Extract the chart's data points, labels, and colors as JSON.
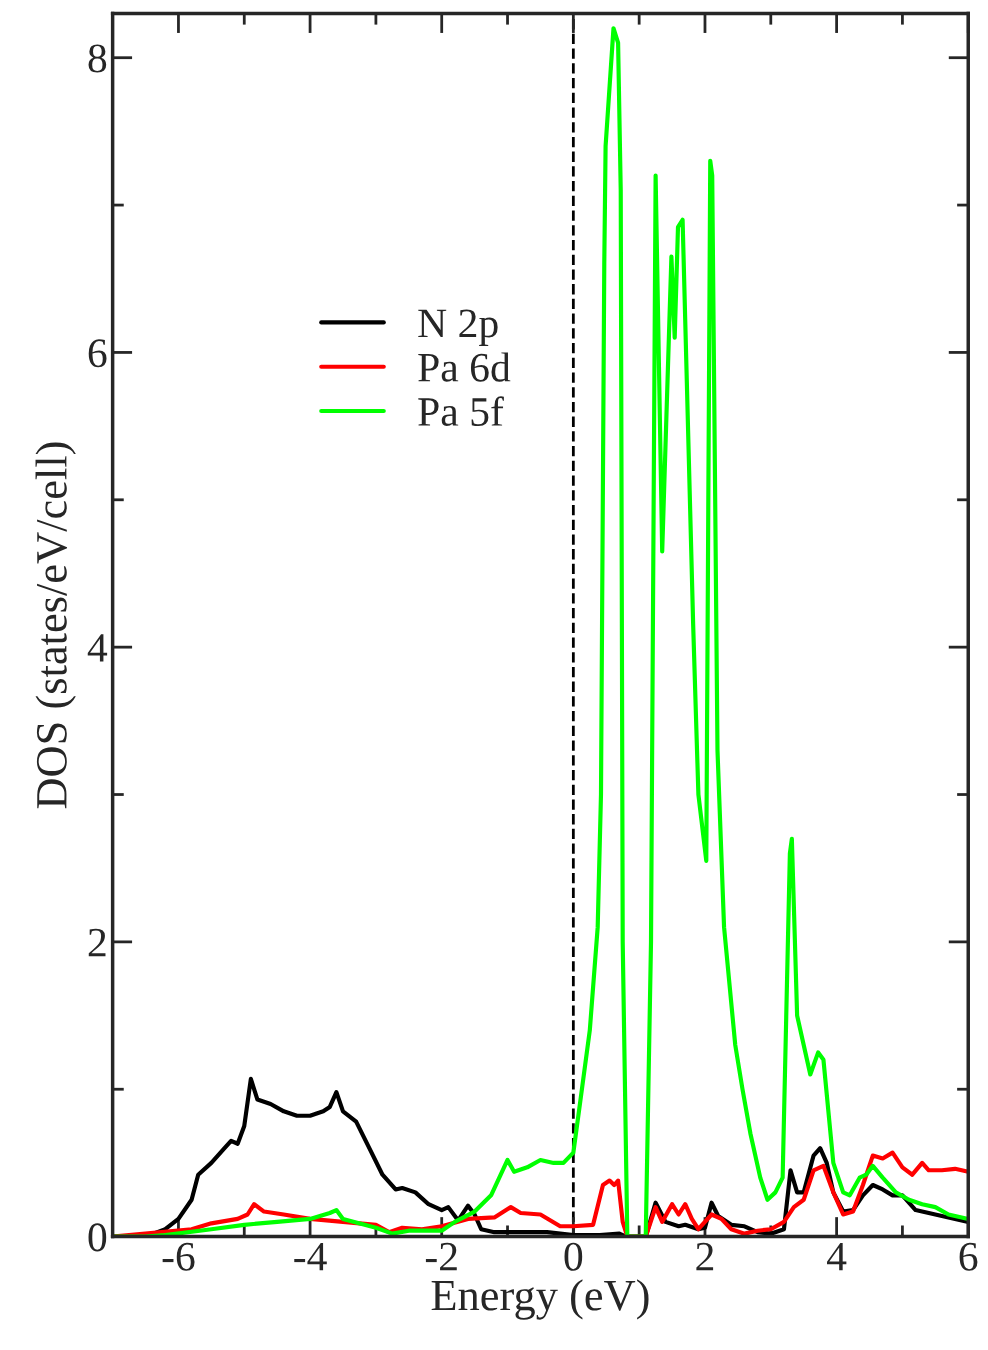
{
  "chart_data": {
    "type": "line",
    "xlabel": "Energy (eV)",
    "ylabel": "DOS (states/eV/cell)",
    "xlim": [
      -7,
      6
    ],
    "ylim": [
      0,
      8.3
    ],
    "xticks": [
      {
        "value": -7,
        "label": null
      },
      -6,
      {
        "value": -5,
        "label": null
      },
      -4,
      {
        "value": -3,
        "label": null
      },
      -2,
      {
        "value": -1,
        "label": null
      },
      0,
      {
        "value": 1,
        "label": null
      },
      2,
      {
        "value": 3,
        "label": null
      },
      4,
      {
        "value": 5,
        "label": null
      },
      6
    ],
    "yticks": [
      0,
      {
        "value": 1,
        "label": null
      },
      2,
      {
        "value": 3,
        "label": null
      },
      4,
      {
        "value": 5,
        "label": null
      },
      6,
      {
        "value": 7,
        "label": null
      },
      8
    ],
    "grid": false,
    "legend": "top left",
    "marker": "none",
    "line_style": "solid",
    "ref_lines": [
      {
        "axis": "x",
        "value": 0,
        "color": "#000000",
        "line_style": "dashed"
      }
    ],
    "series": [
      {
        "name": "N 2p",
        "color": "#000000",
        "x": [
          -7,
          -6.5,
          -6.2,
          -6,
          -5.8,
          -5.7,
          -5.5,
          -5.3,
          -5.2,
          -5.1,
          -5.0,
          -4.9,
          -4.8,
          -4.6,
          -4.4,
          -4.2,
          -4.0,
          -3.8,
          -3.7,
          -3.6,
          -3.5,
          -3.3,
          -3.1,
          -2.9,
          -2.7,
          -2.6,
          -2.4,
          -2.2,
          -2.0,
          -1.9,
          -1.75,
          -1.6,
          -1.5,
          -1.4,
          -1.2,
          -0.8,
          -0.4,
          0,
          0.4,
          0.7,
          0.8,
          1.1,
          1.25,
          1.4,
          1.6,
          1.7,
          1.9,
          2.0,
          2.1,
          2.2,
          2.4,
          2.6,
          2.8,
          3.0,
          3.2,
          3.3,
          3.4,
          3.5,
          3.65,
          3.75,
          3.85,
          3.95,
          4.1,
          4.25,
          4.4,
          4.55,
          4.7,
          4.85,
          5.0,
          5.2,
          5.4,
          5.6,
          5.8,
          6.0
        ],
        "values": [
          0,
          0,
          0.05,
          0.12,
          0.25,
          0.42,
          0.5,
          0.6,
          0.65,
          0.63,
          0.75,
          1.07,
          0.93,
          0.9,
          0.85,
          0.82,
          0.82,
          0.85,
          0.88,
          0.98,
          0.85,
          0.78,
          0.6,
          0.42,
          0.32,
          0.33,
          0.3,
          0.22,
          0.18,
          0.2,
          0.11,
          0.21,
          0.15,
          0.05,
          0.03,
          0.03,
          0.03,
          0.01,
          0.01,
          0.02,
          0,
          0,
          0.23,
          0.1,
          0.07,
          0.08,
          0.05,
          0.06,
          0.23,
          0.14,
          0.08,
          0.07,
          0.03,
          0.02,
          0.05,
          0.45,
          0.3,
          0.3,
          0.55,
          0.6,
          0.5,
          0.3,
          0.17,
          0.18,
          0.28,
          0.35,
          0.32,
          0.28,
          0.28,
          0.18,
          0.16,
          0.14,
          0.12,
          0.1
        ]
      },
      {
        "name": "Pa 6d",
        "color": "#ff0000",
        "x": [
          -7,
          -6.2,
          -5.8,
          -5.5,
          -5.1,
          -4.95,
          -4.85,
          -4.7,
          -4.4,
          -4.0,
          -3.5,
          -3.0,
          -2.8,
          -2.6,
          -2.3,
          -2.0,
          -1.6,
          -1.2,
          -0.95,
          -0.8,
          -0.5,
          -0.2,
          0,
          0.3,
          0.45,
          0.55,
          0.62,
          0.68,
          0.75,
          0.82,
          1.1,
          1.25,
          1.35,
          1.5,
          1.6,
          1.7,
          1.8,
          1.9,
          2.1,
          2.25,
          2.4,
          2.6,
          2.8,
          3.0,
          3.2,
          3.35,
          3.5,
          3.65,
          3.8,
          3.95,
          4.1,
          4.25,
          4.4,
          4.55,
          4.7,
          4.85,
          5.0,
          5.15,
          5.3,
          5.4,
          5.6,
          5.8,
          6.0
        ],
        "values": [
          0,
          null,
          0.05,
          0.09,
          0.12,
          0.15,
          0.22,
          0.17,
          0.15,
          0.12,
          0.1,
          0.08,
          0.03,
          0.06,
          0.05,
          0.07,
          0.12,
          0.13,
          0.2,
          0.16,
          0.15,
          0.07,
          0.07,
          0.08,
          0.35,
          0.38,
          0.35,
          0.38,
          0.1,
          0,
          0,
          0.2,
          0.1,
          0.22,
          0.15,
          0.22,
          0.12,
          0.05,
          0.15,
          0.12,
          0.05,
          0.02,
          0.04,
          0.05,
          0.1,
          0.2,
          0.25,
          0.45,
          0.48,
          0.3,
          0.15,
          0.17,
          0.35,
          0.55,
          0.53,
          0.57,
          0.47,
          0.42,
          0.5,
          0.45,
          0.45,
          0.46,
          0.44
        ]
      },
      {
        "name": "Pa 5f",
        "color": "#00ff00",
        "x": [
          -7,
          -6.5,
          -6.2,
          -5.5,
          -5.0,
          -4.5,
          -4.0,
          -3.7,
          -3.6,
          -3.5,
          -3.0,
          -2.75,
          -2.5,
          -2.0,
          -1.8,
          -1.5,
          -1.25,
          -1.0,
          -0.9,
          -0.7,
          -0.5,
          -0.3,
          -0.15,
          0,
          0.1,
          0.25,
          0.37,
          0.42,
          0.47,
          0.49,
          0.61,
          0.68,
          0.72,
          0.75,
          0.82,
          1.1,
          1.18,
          1.25,
          1.35,
          1.49,
          1.54,
          1.59,
          1.66,
          1.72,
          1.77,
          1.82,
          1.9,
          2.02,
          2.08,
          2.11,
          2.19,
          2.29,
          2.46,
          2.57,
          2.69,
          2.84,
          2.95,
          3.07,
          3.18,
          3.29,
          3.32,
          3.4,
          3.5,
          3.6,
          3.72,
          3.8,
          3.95,
          4.1,
          4.2,
          4.35,
          4.45,
          4.55,
          4.7,
          4.9,
          5.1,
          5.3,
          5.5,
          5.7,
          6.0
        ],
        "values": [
          0,
          0,
          0.01,
          0.05,
          0.08,
          0.1,
          0.12,
          0.16,
          0.18,
          0.12,
          0.06,
          0.02,
          0.04,
          0.04,
          0.1,
          0.17,
          0.28,
          0.52,
          0.44,
          0.47,
          0.52,
          0.5,
          0.5,
          0.57,
          0.9,
          1.4,
          2.1,
          3.0,
          6.6,
          7.4,
          8.2,
          8.1,
          7.1,
          2.0,
          0,
          0,
          2.0,
          7.2,
          4.65,
          6.65,
          6.1,
          6.85,
          6.9,
          null,
          null,
          4.16,
          3.0,
          2.55,
          7.3,
          7.2,
          3.3,
          2.1,
          1.3,
          1.0,
          0.7,
          0.4,
          0.25,
          0.3,
          0.4,
          2.6,
          2.7,
          1.5,
          1.3,
          1.1,
          1.25,
          1.2,
          0.5,
          0.3,
          0.28,
          0.4,
          0.42,
          0.48,
          0.4,
          0.3,
          0.25,
          0.22,
          0.2,
          0.15,
          0.12
        ]
      }
    ]
  }
}
